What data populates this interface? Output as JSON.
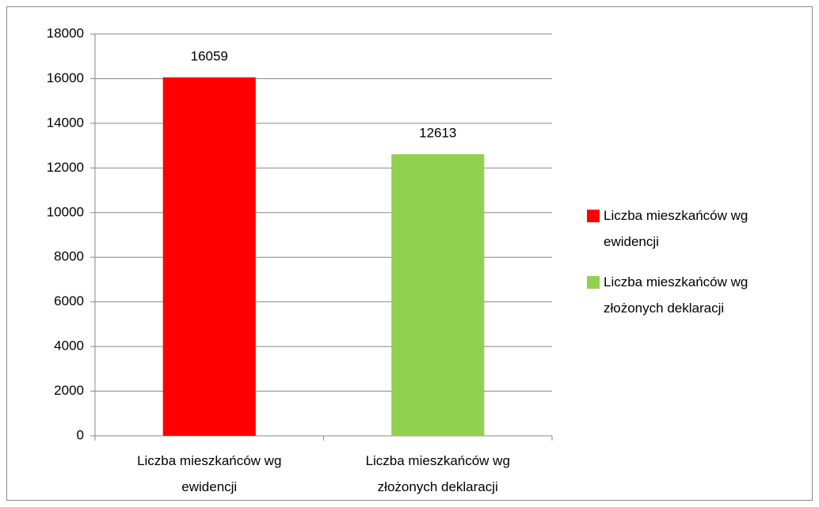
{
  "chart_data": {
    "type": "bar",
    "categories": [
      "Liczba mieszkańców wg ewidencji",
      "Liczba mieszkańców wg złożonych deklaracji"
    ],
    "values": [
      16059,
      12613
    ],
    "colors": [
      "#ff0000",
      "#92d050"
    ],
    "ylim": [
      0,
      18000
    ],
    "yticks": [
      0,
      2000,
      4000,
      6000,
      8000,
      10000,
      12000,
      14000,
      16000,
      18000
    ],
    "grid": true,
    "legend": "right"
  }
}
